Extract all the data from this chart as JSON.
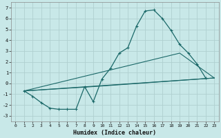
{
  "title": "",
  "xlabel": "Humidex (Indice chaleur)",
  "ylabel": "",
  "xlim": [
    -0.5,
    23.5
  ],
  "ylim": [
    -3.5,
    7.5
  ],
  "xticks": [
    0,
    1,
    2,
    3,
    4,
    5,
    6,
    7,
    8,
    9,
    10,
    11,
    12,
    13,
    14,
    15,
    16,
    17,
    18,
    19,
    20,
    21,
    22,
    23
  ],
  "yticks": [
    -3,
    -2,
    -1,
    0,
    1,
    2,
    3,
    4,
    5,
    6,
    7
  ],
  "background_color": "#c8e8e8",
  "grid_color": "#b0d4d4",
  "line_color": "#1a6868",
  "line1_x": [
    1,
    2,
    3,
    4,
    5,
    6,
    7,
    8,
    9,
    10,
    11,
    12,
    13,
    14,
    15,
    16,
    17,
    18,
    19,
    20,
    21,
    22
  ],
  "line1_y": [
    -0.7,
    -1.2,
    -1.8,
    -2.3,
    -2.4,
    -2.4,
    -2.4,
    -0.3,
    -1.7,
    0.4,
    1.4,
    2.8,
    3.3,
    5.3,
    6.7,
    6.8,
    6.0,
    4.9,
    3.6,
    2.8,
    1.8,
    0.5
  ],
  "line2_x": [
    1,
    23
  ],
  "line2_y": [
    -0.7,
    0.5
  ],
  "line3_x": [
    1,
    19,
    23
  ],
  "line3_y": [
    -0.7,
    2.8,
    0.5
  ],
  "line4_x": [
    1,
    9,
    23
  ],
  "line4_y": [
    -0.7,
    -0.3,
    0.5
  ]
}
